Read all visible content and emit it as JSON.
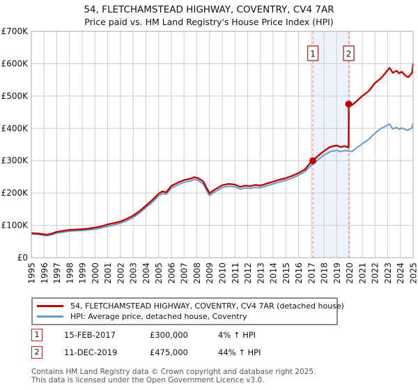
{
  "title": "54, FLETCHAMSTEAD HIGHWAY, COVENTRY, CV4 7AR",
  "subtitle": "Price paid vs. HM Land Registry's House Price Index (HPI)",
  "chart_data": {
    "type": "line",
    "xlim": [
      1995,
      2025
    ],
    "ylim": [
      0,
      700000
    ],
    "grid": true,
    "legend_position": "bottom",
    "x_ticks": [
      1995,
      1996,
      1997,
      1998,
      1999,
      2000,
      2001,
      2002,
      2003,
      2004,
      2005,
      2006,
      2007,
      2008,
      2009,
      2010,
      2011,
      2012,
      2013,
      2014,
      2015,
      2016,
      2017,
      2018,
      2019,
      2020,
      2021,
      2022,
      2023,
      2024,
      2025
    ],
    "y_ticks": [
      "£0",
      "£100K",
      "£200K",
      "£300K",
      "£400K",
      "£500K",
      "£600K",
      "£700K"
    ],
    "colors": {
      "price_paid": "#bb0000",
      "hpi": "#6699cc",
      "band": "#eef2fb",
      "dashed_line": "#f09090",
      "grid": "#cccccc",
      "border": "#aaaaaa",
      "marker_box_border": "#aa3333"
    },
    "band": {
      "from": 2017.12,
      "to": 2019.94
    },
    "sale_markers": [
      {
        "label": "1",
        "x": 2017.12,
        "value": 300000
      },
      {
        "label": "2",
        "x": 2019.94,
        "value": 475000
      }
    ],
    "series": [
      {
        "name": "54, FLETCHAMSTEAD HIGHWAY, COVENTRY, CV4 7AR (detached house)",
        "color": "#bb0000",
        "points": [
          [
            1995.0,
            76000
          ],
          [
            1995.5,
            75000
          ],
          [
            1996.2,
            71000
          ],
          [
            1996.6,
            74000
          ],
          [
            1997.0,
            80000
          ],
          [
            1997.5,
            83000
          ],
          [
            1998.0,
            86000
          ],
          [
            1998.5,
            87000
          ],
          [
            1999.0,
            88000
          ],
          [
            1999.5,
            90000
          ],
          [
            2000.0,
            93000
          ],
          [
            2000.5,
            97000
          ],
          [
            2001.0,
            103000
          ],
          [
            2001.5,
            107000
          ],
          [
            2002.0,
            112000
          ],
          [
            2002.5,
            120000
          ],
          [
            2003.0,
            130000
          ],
          [
            2003.5,
            144000
          ],
          [
            2004.0,
            161000
          ],
          [
            2004.5,
            178000
          ],
          [
            2005.0,
            198000
          ],
          [
            2005.3,
            205000
          ],
          [
            2005.6,
            202000
          ],
          [
            2006.0,
            222000
          ],
          [
            2006.5,
            232000
          ],
          [
            2007.0,
            240000
          ],
          [
            2007.5,
            244000
          ],
          [
            2007.8,
            249000
          ],
          [
            2008.1,
            246000
          ],
          [
            2008.5,
            236000
          ],
          [
            2009.0,
            199000
          ],
          [
            2009.4,
            210000
          ],
          [
            2010.0,
            224000
          ],
          [
            2010.5,
            228000
          ],
          [
            2011.0,
            226000
          ],
          [
            2011.4,
            219000
          ],
          [
            2011.8,
            223000
          ],
          [
            2012.2,
            221000
          ],
          [
            2012.6,
            225000
          ],
          [
            2013.0,
            223000
          ],
          [
            2013.5,
            229000
          ],
          [
            2014.0,
            235000
          ],
          [
            2014.5,
            241000
          ],
          [
            2015.0,
            246000
          ],
          [
            2015.5,
            253000
          ],
          [
            2016.0,
            262000
          ],
          [
            2016.5,
            273000
          ],
          [
            2017.0,
            297000
          ],
          [
            2017.12,
            300000
          ],
          [
            2017.5,
            314000
          ],
          [
            2018.0,
            330000
          ],
          [
            2018.5,
            343000
          ],
          [
            2019.0,
            347000
          ],
          [
            2019.3,
            342000
          ],
          [
            2019.6,
            345000
          ],
          [
            2019.93,
            341000
          ],
          [
            2019.94,
            475000
          ],
          [
            2020.2,
            472000
          ],
          [
            2020.5,
            482000
          ],
          [
            2021.0,
            500000
          ],
          [
            2021.5,
            515000
          ],
          [
            2022.0,
            540000
          ],
          [
            2022.5,
            556000
          ],
          [
            2023.0,
            580000
          ],
          [
            2023.15,
            587000
          ],
          [
            2023.4,
            572000
          ],
          [
            2023.7,
            578000
          ],
          [
            2023.9,
            570000
          ],
          [
            2024.1,
            575000
          ],
          [
            2024.4,
            563000
          ],
          [
            2024.6,
            558000
          ],
          [
            2024.8,
            566000
          ],
          [
            2024.92,
            572000
          ],
          [
            2025.0,
            600000
          ]
        ]
      },
      {
        "name": "HPI: Average price, detached house, Coventry",
        "color": "#6699cc",
        "points": [
          [
            1995.0,
            73000
          ],
          [
            1995.5,
            72000
          ],
          [
            1996.2,
            68000
          ],
          [
            1996.6,
            71000
          ],
          [
            1997.0,
            76000
          ],
          [
            1997.5,
            79000
          ],
          [
            1998.0,
            82000
          ],
          [
            1998.5,
            83000
          ],
          [
            1999.0,
            84000
          ],
          [
            1999.5,
            86000
          ],
          [
            2000.0,
            88000
          ],
          [
            2000.5,
            92000
          ],
          [
            2001.0,
            97000
          ],
          [
            2001.5,
            101000
          ],
          [
            2002.0,
            107000
          ],
          [
            2002.5,
            114000
          ],
          [
            2003.0,
            124000
          ],
          [
            2003.5,
            138000
          ],
          [
            2004.0,
            155000
          ],
          [
            2004.5,
            171000
          ],
          [
            2005.0,
            191000
          ],
          [
            2005.3,
            198000
          ],
          [
            2005.6,
            196000
          ],
          [
            2006.0,
            215000
          ],
          [
            2006.5,
            225000
          ],
          [
            2007.0,
            233000
          ],
          [
            2007.5,
            237000
          ],
          [
            2007.8,
            242000
          ],
          [
            2008.1,
            239000
          ],
          [
            2008.5,
            228000
          ],
          [
            2009.0,
            192000
          ],
          [
            2009.4,
            203000
          ],
          [
            2010.0,
            217000
          ],
          [
            2010.5,
            221000
          ],
          [
            2011.0,
            219000
          ],
          [
            2011.4,
            212000
          ],
          [
            2011.8,
            216000
          ],
          [
            2012.2,
            214000
          ],
          [
            2012.6,
            218000
          ],
          [
            2013.0,
            216000
          ],
          [
            2013.5,
            222000
          ],
          [
            2014.0,
            228000
          ],
          [
            2014.5,
            234000
          ],
          [
            2015.0,
            239000
          ],
          [
            2015.5,
            246000
          ],
          [
            2016.0,
            255000
          ],
          [
            2016.5,
            266000
          ],
          [
            2017.0,
            286000
          ],
          [
            2017.12,
            288000
          ],
          [
            2017.5,
            302000
          ],
          [
            2018.0,
            318000
          ],
          [
            2018.5,
            328000
          ],
          [
            2019.0,
            332000
          ],
          [
            2019.3,
            328000
          ],
          [
            2019.6,
            331000
          ],
          [
            2019.94,
            330000
          ],
          [
            2020.2,
            328000
          ],
          [
            2020.5,
            338000
          ],
          [
            2021.0,
            352000
          ],
          [
            2021.5,
            366000
          ],
          [
            2022.0,
            385000
          ],
          [
            2022.5,
            400000
          ],
          [
            2023.0,
            410000
          ],
          [
            2023.15,
            413000
          ],
          [
            2023.4,
            398000
          ],
          [
            2023.7,
            403000
          ],
          [
            2023.9,
            397000
          ],
          [
            2024.1,
            401000
          ],
          [
            2024.4,
            396000
          ],
          [
            2024.6,
            394000
          ],
          [
            2024.8,
            399000
          ],
          [
            2024.92,
            402000
          ],
          [
            2025.0,
            415000
          ]
        ]
      }
    ]
  },
  "legend": {
    "items": [
      {
        "label": "54, FLETCHAMSTEAD HIGHWAY, COVENTRY, CV4 7AR (detached house)"
      },
      {
        "label": "HPI: Average price, detached house, Coventry"
      }
    ]
  },
  "annotations": [
    {
      "num": "1",
      "date": "15-FEB-2017",
      "price": "£300,000",
      "hpi": "4% ↑ HPI"
    },
    {
      "num": "2",
      "date": "11-DEC-2019",
      "price": "£475,000",
      "hpi": "44% ↑ HPI"
    }
  ],
  "footer": {
    "line1": "Contains HM Land Registry data © Crown copyright and database right 2025.",
    "line2": "This data is licensed under the Open Government Licence v3.0."
  }
}
